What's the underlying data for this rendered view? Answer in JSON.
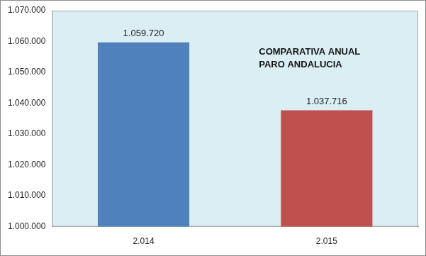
{
  "chart_data": {
    "type": "bar",
    "title": "COMPARATIVA  ANUAL PARO ANDALUCIA",
    "categories": [
      "2.014",
      "2.015"
    ],
    "values": [
      1059720,
      1037716
    ],
    "value_labels": [
      "1.059.720",
      "1.037.716"
    ],
    "colors": [
      "#4f81bd",
      "#c0504d"
    ],
    "data_labels": true,
    "grid": false,
    "ylim": [
      1000000,
      1070000
    ],
    "yticks": [
      {
        "value": 1000000,
        "label": "1.000.000"
      },
      {
        "value": 1010000,
        "label": "1.010.000"
      },
      {
        "value": 1020000,
        "label": "1.020.000"
      },
      {
        "value": 1030000,
        "label": "1.030.000"
      },
      {
        "value": 1040000,
        "label": "1.040.000"
      },
      {
        "value": 1050000,
        "label": "1.050.000"
      },
      {
        "value": 1060000,
        "label": "1.060.000"
      },
      {
        "value": 1070000,
        "label": "1.070.000"
      }
    ]
  }
}
